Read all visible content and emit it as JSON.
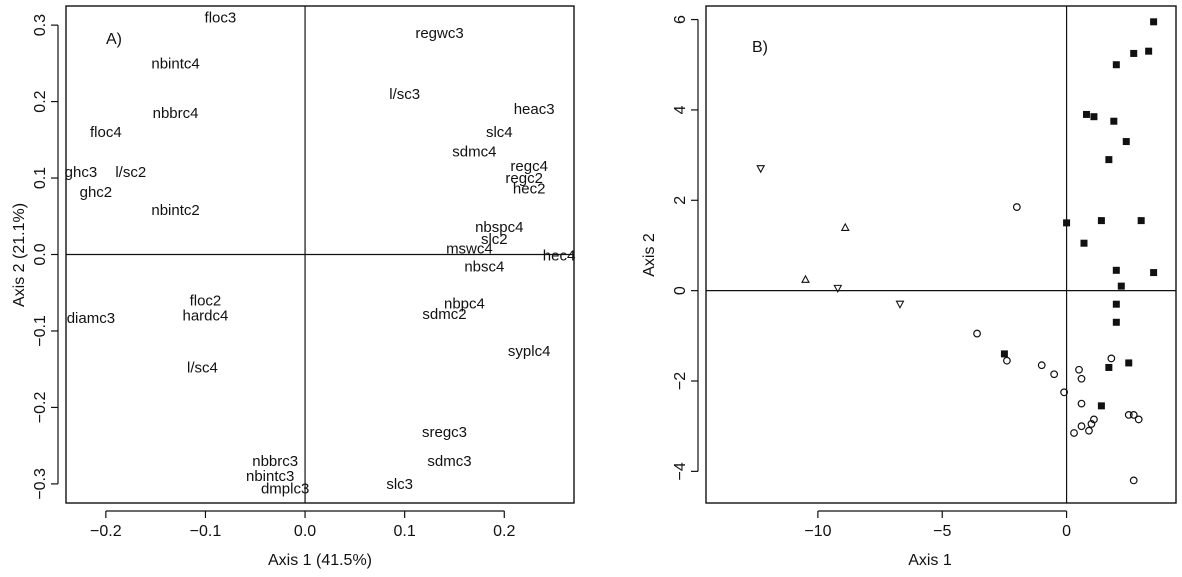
{
  "chart_data": [
    {
      "type": "scatter",
      "panel_label": "A)",
      "xlabel": "Axis 1  (41.5%)",
      "ylabel": "Axis 2  (21.1%)",
      "xlim": [
        -0.24,
        0.27
      ],
      "ylim": [
        -0.325,
        0.325
      ],
      "xticks": [
        -0.2,
        -0.1,
        0.0,
        0.1,
        0.2
      ],
      "xtick_labels": [
        "−0.2",
        "−0.1",
        "0.0",
        "0.1",
        "0.2"
      ],
      "yticks": [
        -0.3,
        -0.2,
        -0.1,
        0.0,
        0.1,
        0.2,
        0.3
      ],
      "ytick_labels": [
        "−0.3",
        "−0.2",
        "−0.1",
        "0.0",
        "0.1",
        "0.2",
        "0.3"
      ],
      "reference_lines": {
        "x": 0,
        "y": 0
      },
      "points": [
        {
          "label": "floc3",
          "x": -0.085,
          "y": 0.31
        },
        {
          "label": "regwc3",
          "x": 0.135,
          "y": 0.29
        },
        {
          "label": "nbintc4",
          "x": -0.13,
          "y": 0.25
        },
        {
          "label": "l/sc3",
          "x": 0.1,
          "y": 0.21
        },
        {
          "label": "nbbrc4",
          "x": -0.13,
          "y": 0.185
        },
        {
          "label": "heac3",
          "x": 0.23,
          "y": 0.19
        },
        {
          "label": "floc4",
          "x": -0.2,
          "y": 0.16
        },
        {
          "label": "slc4",
          "x": 0.195,
          "y": 0.16
        },
        {
          "label": "sdmc4",
          "x": 0.17,
          "y": 0.135
        },
        {
          "label": "ghc3",
          "x": -0.225,
          "y": 0.108
        },
        {
          "label": "l/sc2",
          "x": -0.175,
          "y": 0.108
        },
        {
          "label": "regc4",
          "x": 0.225,
          "y": 0.116
        },
        {
          "label": "regc2",
          "x": 0.22,
          "y": 0.1
        },
        {
          "label": "hec2",
          "x": 0.225,
          "y": 0.086
        },
        {
          "label": "ghc2",
          "x": -0.21,
          "y": 0.082
        },
        {
          "label": "nbintc2",
          "x": -0.13,
          "y": 0.058
        },
        {
          "label": "nbspc4",
          "x": 0.195,
          "y": 0.036
        },
        {
          "label": "slc2",
          "x": 0.19,
          "y": 0.02
        },
        {
          "label": "mswc4",
          "x": 0.165,
          "y": 0.008
        },
        {
          "label": "hec4",
          "x": 0.255,
          "y": -0.001
        },
        {
          "label": "nbsc4",
          "x": 0.18,
          "y": -0.016
        },
        {
          "label": "nbpc4",
          "x": 0.16,
          "y": -0.064
        },
        {
          "label": "floc2",
          "x": -0.1,
          "y": -0.06
        },
        {
          "label": "diamc3",
          "x": -0.215,
          "y": -0.083
        },
        {
          "label": "hardc4",
          "x": -0.1,
          "y": -0.08
        },
        {
          "label": "sdmc2",
          "x": 0.14,
          "y": -0.078
        },
        {
          "label": "syplc4",
          "x": 0.225,
          "y": -0.126
        },
        {
          "label": "l/sc4",
          "x": -0.103,
          "y": -0.148
        },
        {
          "label": "sregc3",
          "x": 0.14,
          "y": -0.232
        },
        {
          "label": "sdmc3",
          "x": 0.145,
          "y": -0.27
        },
        {
          "label": "nbbrc3",
          "x": -0.03,
          "y": -0.27
        },
        {
          "label": "nbintc3",
          "x": -0.035,
          "y": -0.29
        },
        {
          "label": "dmplc3",
          "x": -0.02,
          "y": -0.306
        },
        {
          "label": "slc3",
          "x": 0.095,
          "y": -0.3
        }
      ]
    },
    {
      "type": "scatter",
      "panel_label": "B)",
      "xlabel": "Axis 1",
      "ylabel": "Axis 2",
      "xlim": [
        -14.5,
        4.4
      ],
      "ylim": [
        -4.7,
        6.3
      ],
      "xticks": [
        -10,
        -5,
        0
      ],
      "xtick_labels": [
        "−10",
        "−5",
        "0"
      ],
      "yticks": [
        -4,
        -2,
        0,
        2,
        4,
        6
      ],
      "ytick_labels": [
        "−4",
        "−2",
        "0",
        "2",
        "4",
        "6"
      ],
      "reference_lines": {
        "x": 0,
        "y": 0
      },
      "series": [
        {
          "marker": "filled-square",
          "points": [
            [
              3.5,
              5.95
            ],
            [
              3.3,
              5.3
            ],
            [
              2.7,
              5.25
            ],
            [
              2.0,
              5.0
            ],
            [
              0.8,
              3.9
            ],
            [
              1.1,
              3.85
            ],
            [
              1.9,
              3.75
            ],
            [
              2.4,
              3.3
            ],
            [
              1.7,
              2.9
            ],
            [
              0.0,
              1.5
            ],
            [
              1.4,
              1.55
            ],
            [
              3.0,
              1.55
            ],
            [
              0.7,
              1.05
            ],
            [
              2.0,
              0.45
            ],
            [
              3.5,
              0.4
            ],
            [
              2.2,
              0.1
            ],
            [
              2.0,
              -0.3
            ],
            [
              2.0,
              -0.7
            ],
            [
              -2.5,
              -1.4
            ],
            [
              2.5,
              -1.6
            ],
            [
              1.7,
              -1.7
            ],
            [
              1.4,
              -2.55
            ]
          ]
        },
        {
          "marker": "open-circle",
          "points": [
            [
              -2.0,
              1.85
            ],
            [
              -3.6,
              -0.95
            ],
            [
              -2.4,
              -1.55
            ],
            [
              -1.0,
              -1.65
            ],
            [
              -0.5,
              -1.85
            ],
            [
              1.8,
              -1.5
            ],
            [
              0.5,
              -1.75
            ],
            [
              0.6,
              -1.95
            ],
            [
              -0.1,
              -2.25
            ],
            [
              0.6,
              -2.5
            ],
            [
              1.1,
              -2.85
            ],
            [
              1.0,
              -2.95
            ],
            [
              2.5,
              -2.75
            ],
            [
              2.7,
              -2.75
            ],
            [
              2.9,
              -2.85
            ],
            [
              0.6,
              -3.0
            ],
            [
              0.9,
              -3.1
            ],
            [
              0.3,
              -3.15
            ],
            [
              2.7,
              -4.2
            ]
          ]
        },
        {
          "marker": "open-triangle-up",
          "points": [
            [
              -8.9,
              1.4
            ],
            [
              -10.5,
              0.25
            ]
          ]
        },
        {
          "marker": "open-triangle-down",
          "points": [
            [
              -12.3,
              2.7
            ],
            [
              -9.2,
              0.05
            ],
            [
              -6.7,
              -0.3
            ]
          ]
        }
      ]
    }
  ]
}
